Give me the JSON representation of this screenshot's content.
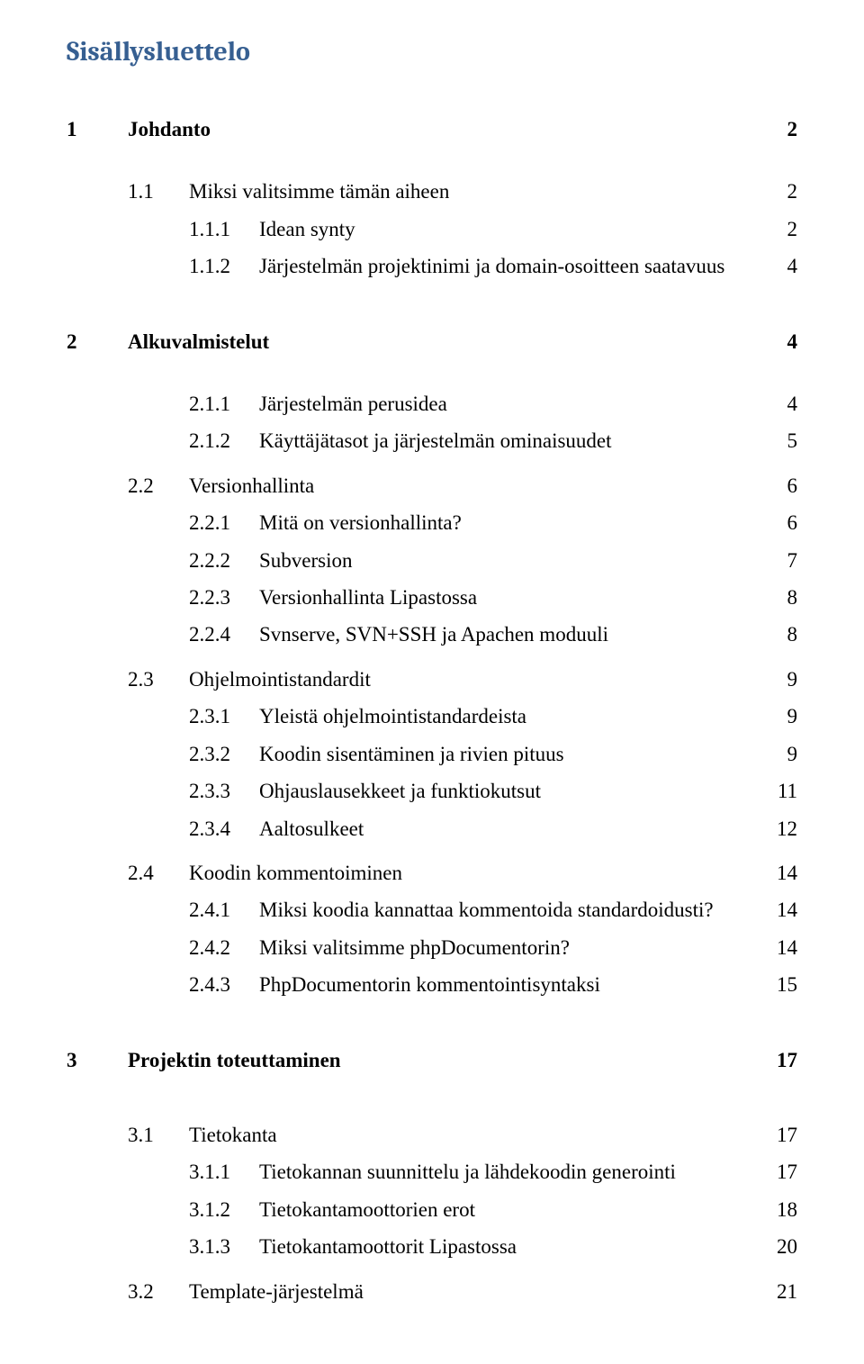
{
  "title": "Sisällysluettelo",
  "colors": {
    "heading": "#365f91",
    "body_text": "#000000",
    "background": "#ffffff"
  },
  "typography": {
    "heading_family": "Cambria",
    "body_family": "Times New Roman",
    "heading_size_pt": 17,
    "body_size_pt": 13
  },
  "toc": [
    {
      "level": 1,
      "num": "1",
      "label": "Johdanto",
      "page": "2",
      "gap": "sm"
    },
    {
      "level": 2,
      "num": "1.1",
      "label": "Miksi valitsimme tämän aiheen",
      "page": "2",
      "gap": "lg"
    },
    {
      "level": 3,
      "num": "1.1.1",
      "label": "Idean synty",
      "page": "2",
      "gap": "sm"
    },
    {
      "level": 3,
      "num": "1.1.2",
      "label": "Järjestelmän projektinimi ja domain-osoitteen saatavuus",
      "page": "4",
      "gap": "sm"
    },
    {
      "level": 1,
      "num": "2",
      "label": "Alkuvalmistelut",
      "page": "4",
      "gap": "xl"
    },
    {
      "level": 3,
      "num": "2.1.1",
      "label": "Järjestelmän perusidea",
      "page": "4",
      "gap": "lg"
    },
    {
      "level": 3,
      "num": "2.1.2",
      "label": "Käyttäjätasot ja järjestelmän ominaisuudet",
      "page": "5",
      "gap": "sm"
    },
    {
      "level": 2,
      "num": "2.2",
      "label": "Versionhallinta",
      "page": "6",
      "gap": "md"
    },
    {
      "level": 3,
      "num": "2.2.1",
      "label": "Mitä on versionhallinta?",
      "page": "6",
      "gap": "sm"
    },
    {
      "level": 3,
      "num": "2.2.2",
      "label": "Subversion",
      "page": "7",
      "gap": "sm"
    },
    {
      "level": 3,
      "num": "2.2.3",
      "label": "Versionhallinta Lipastossa",
      "page": "8",
      "gap": "sm"
    },
    {
      "level": 3,
      "num": "2.2.4",
      "label": "Svnserve, SVN+SSH ja Apachen moduuli",
      "page": "8",
      "gap": "sm"
    },
    {
      "level": 2,
      "num": "2.3",
      "label": "Ohjelmointistandardit",
      "page": "9",
      "gap": "md"
    },
    {
      "level": 3,
      "num": "2.3.1",
      "label": "Yleistä ohjelmointistandardeista",
      "page": "9",
      "gap": "sm"
    },
    {
      "level": 3,
      "num": "2.3.2",
      "label": "Koodin sisentäminen ja rivien pituus",
      "page": "9",
      "gap": "sm"
    },
    {
      "level": 3,
      "num": "2.3.3",
      "label": "Ohjauslausekkeet ja funktiokutsut",
      "page": "11",
      "gap": "sm"
    },
    {
      "level": 3,
      "num": "2.3.4",
      "label": "Aaltosulkeet",
      "page": "12",
      "gap": "sm"
    },
    {
      "level": 2,
      "num": "2.4",
      "label": "Koodin kommentoiminen",
      "page": "14",
      "gap": "md"
    },
    {
      "level": 3,
      "num": "2.4.1",
      "label": "Miksi koodia kannattaa kommentoida standardoidusti?",
      "page": "14",
      "gap": "sm"
    },
    {
      "level": 3,
      "num": "2.4.2",
      "label": "Miksi valitsimme phpDocumentorin?",
      "page": "14",
      "gap": "sm"
    },
    {
      "level": 3,
      "num": "2.4.3",
      "label": "PhpDocumentorin kommentointisyntaksi",
      "page": "15",
      "gap": "sm"
    },
    {
      "level": 1,
      "num": "3",
      "label": "Projektin toteuttaminen",
      "page": "17",
      "gap": "xl"
    },
    {
      "level": 2,
      "num": "3.1",
      "label": "Tietokanta",
      "page": "17",
      "gap": "xl"
    },
    {
      "level": 3,
      "num": "3.1.1",
      "label": "Tietokannan suunnittelu ja lähdekoodin generointi",
      "page": "17",
      "gap": "sm"
    },
    {
      "level": 3,
      "num": "3.1.2",
      "label": "Tietokantamoottorien erot",
      "page": "18",
      "gap": "sm"
    },
    {
      "level": 3,
      "num": "3.1.3",
      "label": "Tietokantamoottorit Lipastossa",
      "page": "20",
      "gap": "sm"
    },
    {
      "level": 2,
      "num": "3.2",
      "label": "Template-järjestelmä",
      "page": "21",
      "gap": "md"
    }
  ]
}
